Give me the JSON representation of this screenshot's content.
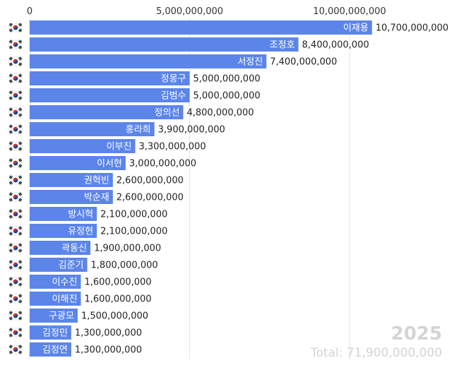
{
  "chart_data": {
    "type": "bar",
    "orientation": "horizontal",
    "categories": [
      "이재용",
      "조정호",
      "서정진",
      "정몽구",
      "김범수",
      "정의선",
      "홍라희",
      "이부진",
      "이서현",
      "권혁빈",
      "박순재",
      "방시혁",
      "유정현",
      "곽동신",
      "김준기",
      "이수진",
      "이해진",
      "구광모",
      "김정민",
      "김정연"
    ],
    "values": [
      10700000000,
      8400000000,
      7400000000,
      5000000000,
      5000000000,
      4800000000,
      3900000000,
      3300000000,
      3000000000,
      2600000000,
      2600000000,
      2100000000,
      2100000000,
      1900000000,
      1800000000,
      1600000000,
      1600000000,
      1500000000,
      1300000000,
      1300000000
    ],
    "value_labels": [
      "10,700,000,000",
      "8,400,000,000",
      "7,400,000,000",
      "5,000,000,000",
      "5,000,000,000",
      "4,800,000,000",
      "3,900,000,000",
      "3,300,000,000",
      "3,000,000,000",
      "2,600,000,000",
      "2,600,000,000",
      "2,100,000,000",
      "2,100,000,000",
      "1,900,000,000",
      "1,800,000,000",
      "1,600,000,000",
      "1,600,000,000",
      "1,500,000,000",
      "1,300,000,000",
      "1,300,000,000"
    ],
    "xticks": [
      0,
      5000000000,
      10000000000
    ],
    "xtick_labels": [
      "0",
      "5,000,000,000",
      "10,000,000,000"
    ],
    "xlim": [
      0,
      11000000000
    ],
    "grid": true,
    "year": "2025",
    "total": "Total: 71,900,000,000",
    "icon": "south-korea-flag-icon",
    "colors": {
      "bar": "#5c85ea",
      "grid": "#e3e3e3",
      "faded_text": "#d4d4d4"
    }
  }
}
